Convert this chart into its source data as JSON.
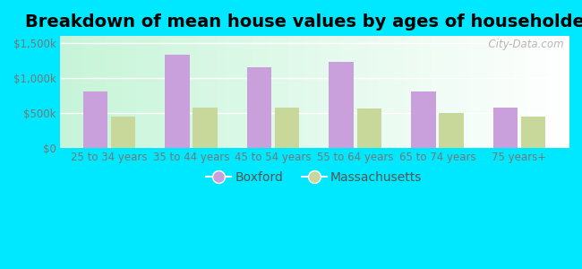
{
  "title": "Breakdown of mean house values by ages of householders",
  "categories": [
    "25 to 34 years",
    "35 to 44 years",
    "45 to 54 years",
    "55 to 64 years",
    "65 to 74 years",
    "75 years+"
  ],
  "boxford_values": [
    800000,
    1330000,
    1150000,
    1230000,
    800000,
    580000
  ],
  "ma_values": [
    450000,
    580000,
    580000,
    560000,
    500000,
    440000
  ],
  "boxford_color": "#c9a0dc",
  "ma_color": "#c8d89a",
  "background_outer": "#00e8ff",
  "yticks": [
    0,
    500000,
    1000000,
    1500000
  ],
  "ytick_labels": [
    "$0",
    "$500k",
    "$1,000k",
    "$1,500k"
  ],
  "ylim": [
    0,
    1600000
  ],
  "legend_labels": [
    "Boxford",
    "Massachusetts"
  ],
  "watermark": "  City-Data.com",
  "title_fontsize": 14,
  "tick_fontsize": 8.5,
  "legend_fontsize": 10,
  "bar_width": 0.3
}
